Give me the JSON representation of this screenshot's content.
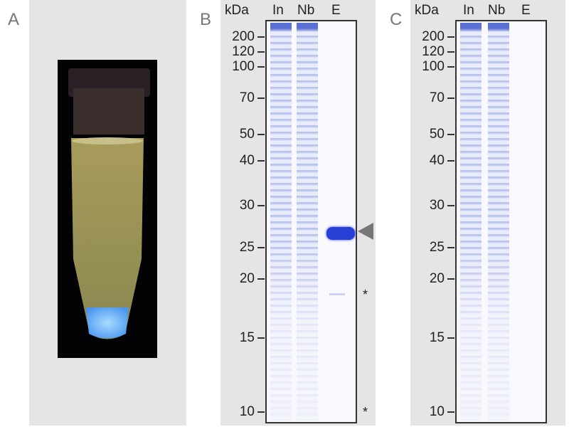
{
  "panels": {
    "a": {
      "label": "A"
    },
    "b": {
      "label": "B",
      "header": {
        "unit": "kDa",
        "lanes": [
          "In",
          "Nb",
          "E"
        ]
      },
      "markers": [
        "200",
        "120",
        "100",
        "70",
        "50",
        "40",
        "30",
        "25",
        "20",
        "15",
        "10"
      ],
      "annotations": {
        "arrow": "arrowhead",
        "stars": [
          "*",
          "*"
        ]
      }
    },
    "c": {
      "label": "C",
      "header": {
        "unit": "kDa",
        "lanes": [
          "In",
          "Nb",
          "E"
        ]
      },
      "markers": [
        "200",
        "120",
        "100",
        "70",
        "50",
        "40",
        "30",
        "25",
        "20",
        "15",
        "10"
      ]
    }
  },
  "colors": {
    "panel_bg": "#e6e5e6",
    "stain": "#2a3fd6",
    "fluorescence": "#6fb6ff"
  }
}
